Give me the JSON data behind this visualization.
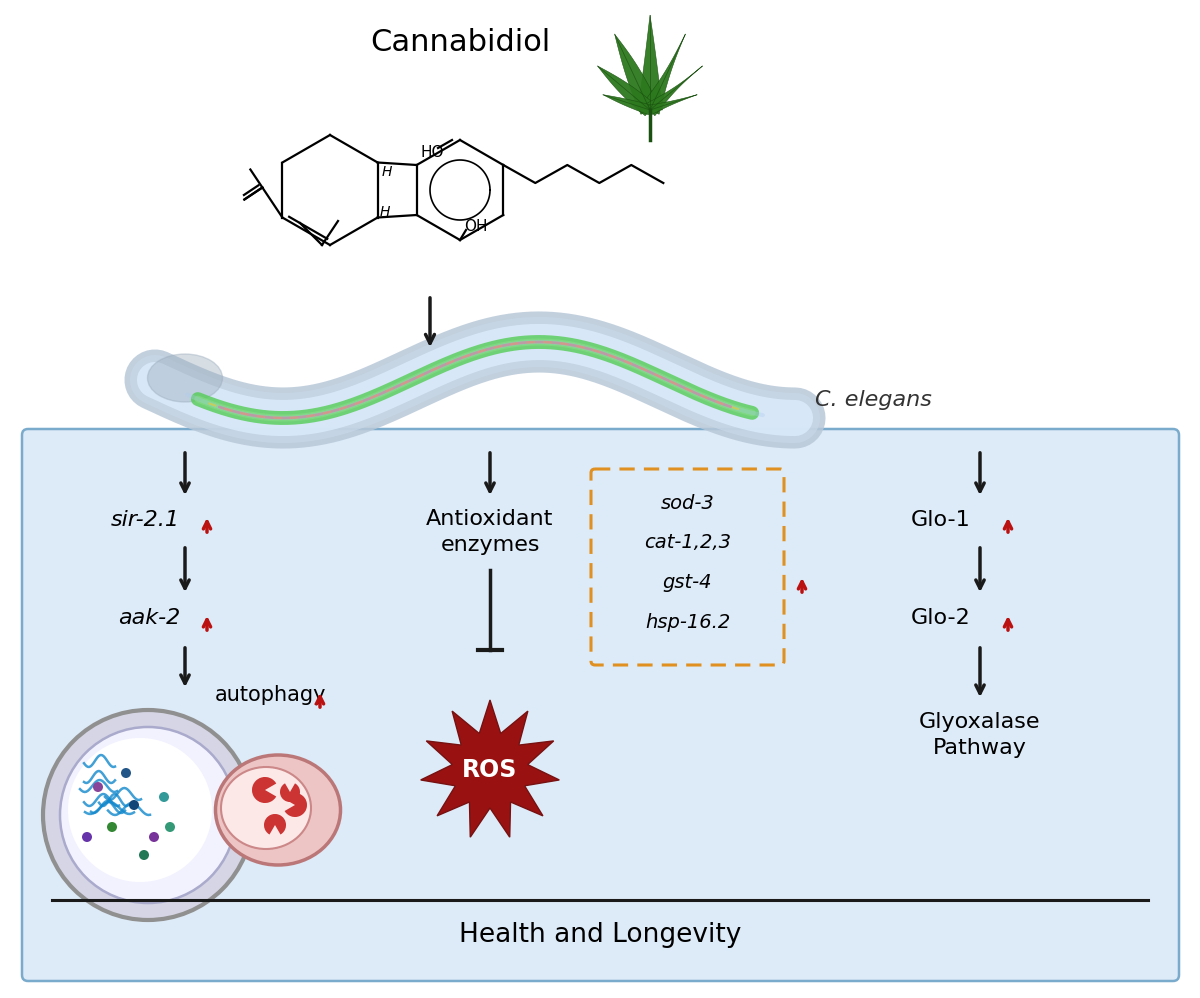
{
  "title": "Cannabidiol",
  "c_elegans_label": "C. elegans",
  "box_bg_color": "#ddeaf7",
  "box_border_color": "#7aaacc",
  "red_arrow_color": "#bb1111",
  "black_arrow_color": "#1a1a1a",
  "bottom_label": "Health and Longevity",
  "col1_labels": [
    "sir-2.1",
    "aak-2",
    "autophagy"
  ],
  "col2_label": "Antioxidant\nenzymes",
  "col2_box_labels": [
    "sod-3",
    "cat-1,2,3",
    "gst-4",
    "hsp-16.2"
  ],
  "col2_box_color": "#e09020",
  "col3_labels": [
    "Glo-1",
    "Glo-2",
    "Glyoxalase\nPathway"
  ],
  "ros_label": "ROS",
  "ros_color": "#991111",
  "leaf_color": "#2d7a1e",
  "leaf_dark": "#1a5010"
}
